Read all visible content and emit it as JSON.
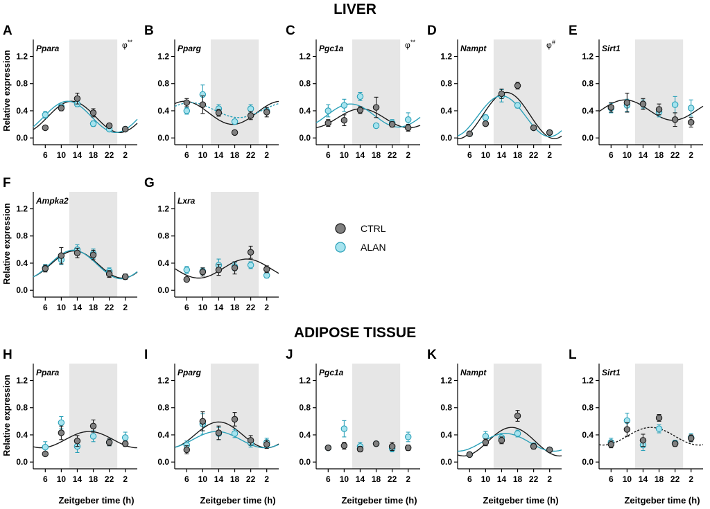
{
  "titles": {
    "liver": "LIVER",
    "adipose": "ADIPOSE TISSUE"
  },
  "ylabel": "Relative expression",
  "xlabel": "Zeitgeber time (h)",
  "legend": [
    {
      "name": "CTRL",
      "color": "#808080"
    },
    {
      "name": "ALAN",
      "color": "#9ee0ec"
    }
  ],
  "colors": {
    "ctrl_line": "#1a1a1a",
    "alan_line": "#2aa0b8",
    "dark_shade": "#e6e6e6",
    "ctrl_fill": "#808080",
    "alan_fill": "#a6e3ee"
  },
  "chart_data": [
    {
      "type": "scatter",
      "letter": "A",
      "title": "Ppara",
      "tissue": "liver",
      "sig": {
        "text": "φ",
        "sup": "**"
      },
      "x": [
        6,
        10,
        14,
        18,
        22,
        2
      ],
      "xticks": [
        "6",
        "10",
        "14",
        "18",
        "22",
        "2"
      ],
      "ylim": [
        -0.1,
        1.45
      ],
      "yticks": [
        "0.0",
        "0.4",
        "0.8",
        "1.2"
      ],
      "dark_phase": [
        12,
        24
      ],
      "series": [
        {
          "name": "CTRL",
          "values": [
            0.15,
            0.44,
            0.58,
            0.37,
            0.18,
            0.13
          ],
          "err": [
            0.02,
            0.04,
            0.08,
            0.06,
            0.03,
            0.03
          ],
          "fit": {
            "mesor": 0.31,
            "amp": 0.23,
            "peak": 12.6,
            "dashed": false
          }
        },
        {
          "name": "ALAN",
          "values": [
            0.34,
            0.46,
            0.5,
            0.21,
            0.13,
            0.13
          ],
          "err": [
            0.05,
            0.03,
            0.04,
            0.04,
            0.02,
            0.02
          ],
          "fit": {
            "mesor": 0.31,
            "amp": 0.23,
            "peak": 11.6,
            "dashed": false
          }
        }
      ]
    },
    {
      "type": "scatter",
      "letter": "B",
      "title": "Pparg",
      "tissue": "liver",
      "sig": null,
      "x": [
        6,
        10,
        14,
        18,
        22,
        2
      ],
      "xticks": [
        "6",
        "10",
        "14",
        "18",
        "22",
        "2"
      ],
      "ylim": [
        -0.1,
        1.45
      ],
      "yticks": [
        "0.0",
        "0.4",
        "0.8",
        "1.2"
      ],
      "dark_phase": [
        12,
        24
      ],
      "series": [
        {
          "name": "CTRL",
          "values": [
            0.52,
            0.49,
            0.37,
            0.08,
            0.33,
            0.38
          ],
          "err": [
            0.06,
            0.13,
            0.05,
            0.02,
            0.06,
            0.07
          ],
          "fit": {
            "mesor": 0.37,
            "amp": 0.17,
            "peak": 5.5,
            "dashed": false
          }
        },
        {
          "name": "ALAN",
          "values": [
            0.4,
            0.64,
            0.43,
            0.24,
            0.43,
            0.4
          ],
          "err": [
            0.05,
            0.14,
            0.06,
            0.03,
            0.06,
            0.05
          ],
          "fit": {
            "mesor": 0.41,
            "amp": 0.11,
            "peak": 7.0,
            "dashed": true
          }
        }
      ]
    },
    {
      "type": "scatter",
      "letter": "C",
      "title": "Pgc1a",
      "tissue": "liver",
      "sig": {
        "text": "φ",
        "sup": "**"
      },
      "x": [
        6,
        10,
        14,
        18,
        22,
        2
      ],
      "xticks": [
        "6",
        "10",
        "14",
        "18",
        "22",
        "2"
      ],
      "ylim": [
        -0.1,
        1.45
      ],
      "yticks": [
        "0.0",
        "0.4",
        "0.8",
        "1.2"
      ],
      "dark_phase": [
        12,
        24
      ],
      "series": [
        {
          "name": "CTRL",
          "values": [
            0.22,
            0.26,
            0.41,
            0.45,
            0.2,
            0.15
          ],
          "err": [
            0.05,
            0.08,
            0.05,
            0.15,
            0.04,
            0.05
          ],
          "fit": {
            "mesor": 0.29,
            "amp": 0.14,
            "peak": 14.2,
            "dashed": false
          }
        },
        {
          "name": "ALAN",
          "values": [
            0.4,
            0.48,
            0.61,
            0.18,
            0.22,
            0.27
          ],
          "err": [
            0.09,
            0.09,
            0.06,
            0.02,
            0.05,
            0.1
          ],
          "fit": {
            "mesor": 0.33,
            "amp": 0.17,
            "peak": 11.6,
            "dashed": false
          }
        }
      ]
    },
    {
      "type": "scatter",
      "letter": "D",
      "title": "Nampt",
      "tissue": "liver",
      "sig": {
        "text": "φ",
        "sup": "#"
      },
      "x": [
        6,
        10,
        14,
        18,
        22,
        2
      ],
      "xticks": [
        "6",
        "10",
        "14",
        "18",
        "22",
        "2"
      ],
      "ylim": [
        -0.1,
        1.45
      ],
      "yticks": [
        "0.0",
        "0.4",
        "0.8",
        "1.2"
      ],
      "dark_phase": [
        12,
        24
      ],
      "series": [
        {
          "name": "CTRL",
          "values": [
            0.06,
            0.21,
            0.65,
            0.77,
            0.15,
            0.08
          ],
          "err": [
            0.02,
            0.03,
            0.07,
            0.05,
            0.02,
            0.02
          ],
          "fit": {
            "mesor": 0.33,
            "amp": 0.34,
            "peak": 15.2,
            "dashed": false
          }
        },
        {
          "name": "ALAN",
          "values": [
            0.06,
            0.3,
            0.62,
            0.48,
            0.15,
            0.08
          ],
          "err": [
            0.02,
            0.04,
            0.09,
            0.04,
            0.02,
            0.02
          ],
          "fit": {
            "mesor": 0.32,
            "amp": 0.3,
            "peak": 14.0,
            "dashed": false
          }
        }
      ]
    },
    {
      "type": "scatter",
      "letter": "E",
      "title": "Sirt1",
      "tissue": "liver",
      "sig": null,
      "x": [
        6,
        10,
        14,
        18,
        22,
        2
      ],
      "xticks": [
        "6",
        "10",
        "14",
        "18",
        "22",
        "2"
      ],
      "ylim": [
        -0.1,
        1.45
      ],
      "yticks": [
        "0.0",
        "0.4",
        "0.8",
        "1.2"
      ],
      "dark_phase": [
        12,
        24
      ],
      "series": [
        {
          "name": "CTRL",
          "values": [
            0.45,
            0.52,
            0.5,
            0.42,
            0.27,
            0.23
          ],
          "err": [
            0.07,
            0.14,
            0.08,
            0.08,
            0.1,
            0.07
          ],
          "fit": {
            "mesor": 0.41,
            "amp": 0.15,
            "peak": 9.5,
            "dashed": false
          }
        },
        {
          "name": "ALAN",
          "values": [
            0.44,
            0.48,
            0.5,
            0.38,
            0.49,
            0.44
          ],
          "err": [
            0.07,
            0.09,
            0.06,
            0.07,
            0.12,
            0.12
          ],
          "fit": null
        }
      ]
    },
    {
      "type": "scatter",
      "letter": "F",
      "title": "Ampka2",
      "tissue": "liver",
      "sig": null,
      "x": [
        6,
        10,
        14,
        18,
        22,
        2
      ],
      "xticks": [
        "6",
        "10",
        "14",
        "18",
        "22",
        "2"
      ],
      "ylim": [
        -0.1,
        1.45
      ],
      "yticks": [
        "0.0",
        "0.4",
        "0.8",
        "1.2"
      ],
      "dark_phase": [
        12,
        24
      ],
      "series": [
        {
          "name": "CTRL",
          "values": [
            0.32,
            0.51,
            0.55,
            0.52,
            0.24,
            0.2
          ],
          "err": [
            0.05,
            0.12,
            0.07,
            0.07,
            0.05,
            0.04
          ],
          "fit": {
            "mesor": 0.38,
            "amp": 0.2,
            "peak": 13.3,
            "dashed": false
          }
        },
        {
          "name": "ALAN",
          "values": [
            0.33,
            0.45,
            0.6,
            0.54,
            0.28,
            0.2
          ],
          "err": [
            0.05,
            0.07,
            0.07,
            0.07,
            0.05,
            0.04
          ],
          "fit": {
            "mesor": 0.38,
            "amp": 0.21,
            "peak": 13.0,
            "dashed": false
          }
        }
      ]
    },
    {
      "type": "scatter",
      "letter": "G",
      "title": "Lxra",
      "tissue": "liver",
      "sig": null,
      "x": [
        6,
        10,
        14,
        18,
        22,
        2
      ],
      "xticks": [
        "6",
        "10",
        "14",
        "18",
        "22",
        "2"
      ],
      "ylim": [
        -0.1,
        1.45
      ],
      "yticks": [
        "0.0",
        "0.4",
        "0.8",
        "1.2"
      ],
      "dark_phase": [
        12,
        24
      ],
      "series": [
        {
          "name": "CTRL",
          "values": [
            0.16,
            0.27,
            0.3,
            0.33,
            0.56,
            0.31
          ],
          "err": [
            0.03,
            0.06,
            0.08,
            0.09,
            0.09,
            0.05
          ],
          "fit": {
            "mesor": 0.32,
            "amp": 0.14,
            "peak": 21.0,
            "dashed": false
          }
        },
        {
          "name": "ALAN",
          "values": [
            0.3,
            0.28,
            0.37,
            0.35,
            0.37,
            0.22
          ],
          "err": [
            0.05,
            0.05,
            0.09,
            0.06,
            0.05,
            0.04
          ],
          "fit": null
        }
      ]
    },
    {
      "type": "scatter",
      "letter": "H",
      "title": "Ppara",
      "tissue": "adipose",
      "sig": null,
      "x": [
        6,
        10,
        14,
        18,
        22,
        2
      ],
      "xticks": [
        "6",
        "10",
        "14",
        "18",
        "22",
        "2"
      ],
      "ylim": [
        -0.1,
        1.45
      ],
      "yticks": [
        "0.0",
        "0.4",
        "0.8",
        "1.2"
      ],
      "dark_phase": [
        12,
        24
      ],
      "series": [
        {
          "name": "CTRL",
          "values": [
            0.12,
            0.43,
            0.31,
            0.53,
            0.29,
            0.27
          ],
          "err": [
            0.03,
            0.1,
            0.08,
            0.09,
            0.05,
            0.04
          ],
          "fit": {
            "mesor": 0.33,
            "amp": 0.12,
            "peak": 17.0,
            "dashed": false
          }
        },
        {
          "name": "ALAN",
          "values": [
            0.22,
            0.58,
            0.23,
            0.38,
            0.29,
            0.36
          ],
          "err": [
            0.08,
            0.09,
            0.09,
            0.08,
            0.05,
            0.08
          ],
          "fit": null
        }
      ]
    },
    {
      "type": "scatter",
      "letter": "I",
      "title": "Pparg",
      "tissue": "adipose",
      "sig": null,
      "x": [
        6,
        10,
        14,
        18,
        22,
        2
      ],
      "xticks": [
        "6",
        "10",
        "14",
        "18",
        "22",
        "2"
      ],
      "ylim": [
        -0.1,
        1.45
      ],
      "yticks": [
        "0.0",
        "0.4",
        "0.8",
        "1.2"
      ],
      "dark_phase": [
        12,
        24
      ],
      "series": [
        {
          "name": "CTRL",
          "values": [
            0.18,
            0.6,
            0.43,
            0.63,
            0.32,
            0.26
          ],
          "err": [
            0.06,
            0.14,
            0.1,
            0.1,
            0.07,
            0.06
          ],
          "fit": {
            "mesor": 0.4,
            "amp": 0.19,
            "peak": 14.0,
            "dashed": false
          }
        },
        {
          "name": "ALAN",
          "values": [
            0.25,
            0.56,
            0.42,
            0.42,
            0.28,
            0.29
          ],
          "err": [
            0.06,
            0.15,
            0.09,
            0.06,
            0.06,
            0.06
          ],
          "fit": {
            "mesor": 0.33,
            "amp": 0.12,
            "peak": 13.5,
            "dashed": false
          }
        }
      ]
    },
    {
      "type": "scatter",
      "letter": "J",
      "title": "Pgc1a",
      "tissue": "adipose",
      "sig": null,
      "x": [
        6,
        10,
        14,
        18,
        22,
        2
      ],
      "xticks": [
        "6",
        "10",
        "14",
        "18",
        "22",
        "2"
      ],
      "ylim": [
        -0.1,
        1.45
      ],
      "yticks": [
        "0.0",
        "0.4",
        "0.8",
        "1.2"
      ],
      "dark_phase": [
        12,
        24
      ],
      "series": [
        {
          "name": "CTRL",
          "values": [
            0.21,
            0.24,
            0.19,
            0.27,
            0.23,
            0.21
          ],
          "err": [
            0.03,
            0.05,
            0.04,
            0.03,
            0.06,
            0.04
          ],
          "fit": null
        },
        {
          "name": "ALAN",
          "values": [
            0.21,
            0.49,
            0.23,
            0.27,
            0.2,
            0.37
          ],
          "err": [
            0.03,
            0.12,
            0.06,
            0.03,
            0.05,
            0.07
          ],
          "fit": null
        }
      ]
    },
    {
      "type": "scatter",
      "letter": "K",
      "title": "Nampt",
      "tissue": "adipose",
      "sig": null,
      "x": [
        6,
        10,
        14,
        18,
        22,
        2
      ],
      "xticks": [
        "6",
        "10",
        "14",
        "18",
        "22",
        "2"
      ],
      "ylim": [
        -0.1,
        1.45
      ],
      "yticks": [
        "0.0",
        "0.4",
        "0.8",
        "1.2"
      ],
      "dark_phase": [
        12,
        24
      ],
      "series": [
        {
          "name": "CTRL",
          "values": [
            0.11,
            0.29,
            0.32,
            0.68,
            0.23,
            0.18
          ],
          "err": [
            0.03,
            0.05,
            0.05,
            0.08,
            0.04,
            0.03
          ],
          "fit": {
            "mesor": 0.3,
            "amp": 0.21,
            "peak": 16.5,
            "dashed": false
          }
        },
        {
          "name": "ALAN",
          "values": [
            0.11,
            0.38,
            0.36,
            0.42,
            0.24,
            0.18
          ],
          "err": [
            0.03,
            0.07,
            0.06,
            0.05,
            0.04,
            0.03
          ],
          "fit": {
            "mesor": 0.29,
            "amp": 0.13,
            "peak": 15.0,
            "dashed": false
          }
        }
      ]
    },
    {
      "type": "scatter",
      "letter": "L",
      "title": "Sirt1",
      "tissue": "adipose",
      "sig": null,
      "x": [
        6,
        10,
        14,
        18,
        22,
        2
      ],
      "xticks": [
        "6",
        "10",
        "14",
        "18",
        "22",
        "2"
      ],
      "ylim": [
        -0.1,
        1.45
      ],
      "yticks": [
        "0.0",
        "0.4",
        "0.8",
        "1.2"
      ],
      "dark_phase": [
        12,
        24
      ],
      "series": [
        {
          "name": "CTRL",
          "values": [
            0.26,
            0.48,
            0.32,
            0.65,
            0.27,
            0.35
          ],
          "err": [
            0.05,
            0.1,
            0.09,
            0.05,
            0.04,
            0.05
          ],
          "fit": {
            "mesor": 0.38,
            "amp": 0.13,
            "peak": 16.0,
            "dashed": true
          }
        },
        {
          "name": "ALAN",
          "values": [
            0.29,
            0.61,
            0.25,
            0.49,
            0.28,
            0.36
          ],
          "err": [
            0.06,
            0.11,
            0.08,
            0.06,
            0.04,
            0.06
          ],
          "fit": null
        }
      ]
    }
  ]
}
